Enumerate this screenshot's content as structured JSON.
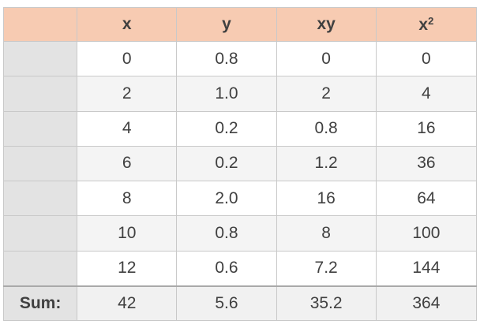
{
  "table": {
    "headers": {
      "corner": "",
      "x": "x",
      "y": "y",
      "xy": "xy",
      "x2_base": "x",
      "x2_exp": "2"
    },
    "rows": [
      {
        "label": "",
        "x": "0",
        "y": "0.8",
        "xy": "0",
        "x2": "0"
      },
      {
        "label": "",
        "x": "2",
        "y": "1.0",
        "xy": "2",
        "x2": "4"
      },
      {
        "label": "",
        "x": "4",
        "y": "0.2",
        "xy": "0.8",
        "x2": "16"
      },
      {
        "label": "",
        "x": "6",
        "y": "0.2",
        "xy": "1.2",
        "x2": "36"
      },
      {
        "label": "",
        "x": "8",
        "y": "2.0",
        "xy": "16",
        "x2": "64"
      },
      {
        "label": "",
        "x": "10",
        "y": "0.8",
        "xy": "8",
        "x2": "100"
      },
      {
        "label": "",
        "x": "12",
        "y": "0.6",
        "xy": "7.2",
        "x2": "144"
      }
    ],
    "footer": {
      "label": "Sum:",
      "x": "42",
      "y": "5.6",
      "xy": "35.2",
      "x2": "364"
    }
  },
  "colors": {
    "header_bg": "#f7cbb2",
    "row_header_bg": "#e3e3e3",
    "border": "#c9c9c9",
    "text": "#404040"
  }
}
